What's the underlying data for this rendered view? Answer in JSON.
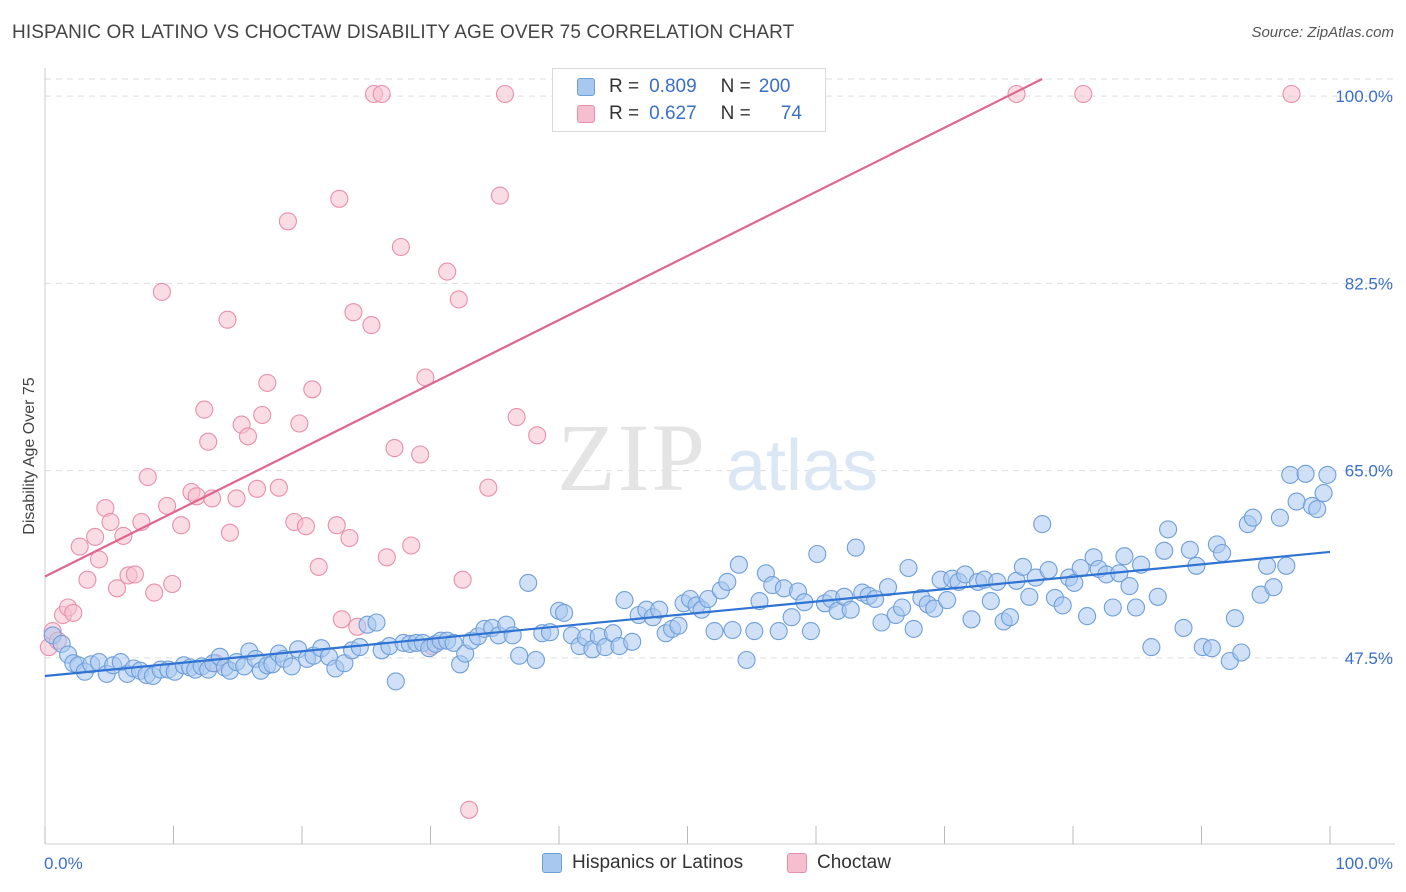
{
  "title": "HISPANIC OR LATINO VS CHOCTAW DISABILITY AGE OVER 75 CORRELATION CHART",
  "source": "Source: ZipAtlas.com",
  "watermark": {
    "zip": "ZIP",
    "atlas": "atlas"
  },
  "legend": {
    "rows": [
      {
        "r_label": "R =",
        "r_value": "0.809",
        "n_label": "N =",
        "n_value": "200"
      },
      {
        "r_label": "R =",
        "r_value": "0.627",
        "n_label": "N =",
        "n_value": "74"
      }
    ]
  },
  "bottom_legend": [
    {
      "label": "Hispanics or Latinos"
    },
    {
      "label": "Choctaw"
    }
  ],
  "colors": {
    "blue_fill": "#a9c8f0",
    "blue_stroke": "#6f9fd8",
    "blue_line": "#2f73d3",
    "pink_fill": "#f6bfd0",
    "pink_stroke": "#e88fac",
    "pink_line": "#e0658f",
    "axis_text": "#3a6fc9",
    "grid": "#dddddd"
  },
  "chart_data": {
    "type": "scatter",
    "title": "HISPANIC OR LATINO VS CHOCTAW DISABILITY AGE OVER 75 CORRELATION CHART",
    "xlabel": "",
    "ylabel": "Disability Age Over 75",
    "xlim": [
      0,
      100
    ],
    "ylim": [
      30.1,
      101.6
    ],
    "x_tick_labels": [
      "0.0%",
      "100.0%"
    ],
    "y_ticks": [
      47.5,
      65.0,
      82.5,
      100.0
    ],
    "y_tick_labels": [
      "47.5%",
      "65.0%",
      "82.5%",
      "100.0%"
    ],
    "grid": true,
    "legend_position": "top-center",
    "series": [
      {
        "name": "Hispanics or Latinos",
        "color": "#a9c8f0",
        "trend": {
          "x": [
            0,
            100
          ],
          "y": [
            45.8,
            57.4
          ]
        },
        "points": [
          [
            0.6,
            49.6
          ],
          [
            1.3,
            48.8
          ],
          [
            1.8,
            47.8
          ],
          [
            2.2,
            47.0
          ],
          [
            2.6,
            46.8
          ],
          [
            3.1,
            46.2
          ],
          [
            3.6,
            46.9
          ],
          [
            4.2,
            47.1
          ],
          [
            4.8,
            46.0
          ],
          [
            5.3,
            46.8
          ],
          [
            5.9,
            47.1
          ],
          [
            6.4,
            46.0
          ],
          [
            6.9,
            46.5
          ],
          [
            7.4,
            46.3
          ],
          [
            7.9,
            45.9
          ],
          [
            8.4,
            45.8
          ],
          [
            9.0,
            46.4
          ],
          [
            9.6,
            46.4
          ],
          [
            10.1,
            46.2
          ],
          [
            10.8,
            46.8
          ],
          [
            11.3,
            46.6
          ],
          [
            11.7,
            46.4
          ],
          [
            12.2,
            46.7
          ],
          [
            12.7,
            46.4
          ],
          [
            13.1,
            47.0
          ],
          [
            13.6,
            47.6
          ],
          [
            14.0,
            46.6
          ],
          [
            14.4,
            46.3
          ],
          [
            14.9,
            47.1
          ],
          [
            15.5,
            46.7
          ],
          [
            15.9,
            48.1
          ],
          [
            16.4,
            47.4
          ],
          [
            16.8,
            46.3
          ],
          [
            17.3,
            46.8
          ],
          [
            17.7,
            46.9
          ],
          [
            18.2,
            47.9
          ],
          [
            18.6,
            47.4
          ],
          [
            19.2,
            46.7
          ],
          [
            19.7,
            48.3
          ],
          [
            20.4,
            47.4
          ],
          [
            20.9,
            47.7
          ],
          [
            21.5,
            48.4
          ],
          [
            22.1,
            47.6
          ],
          [
            22.6,
            46.5
          ],
          [
            23.3,
            47.0
          ],
          [
            23.9,
            48.2
          ],
          [
            24.5,
            48.5
          ],
          [
            25.1,
            50.6
          ],
          [
            25.8,
            50.8
          ],
          [
            26.2,
            48.2
          ],
          [
            26.8,
            48.6
          ],
          [
            27.3,
            45.3
          ],
          [
            27.9,
            48.9
          ],
          [
            28.4,
            48.8
          ],
          [
            28.9,
            48.9
          ],
          [
            29.4,
            48.9
          ],
          [
            29.9,
            48.4
          ],
          [
            30.4,
            48.8
          ],
          [
            30.8,
            49.1
          ],
          [
            31.3,
            49.1
          ],
          [
            31.8,
            48.9
          ],
          [
            32.3,
            46.9
          ],
          [
            32.7,
            47.9
          ],
          [
            33.2,
            49.1
          ],
          [
            33.7,
            49.5
          ],
          [
            34.2,
            50.2
          ],
          [
            34.8,
            50.3
          ],
          [
            35.3,
            49.6
          ],
          [
            35.9,
            50.6
          ],
          [
            36.4,
            49.6
          ],
          [
            36.9,
            47.7
          ],
          [
            37.6,
            54.5
          ],
          [
            38.2,
            47.3
          ],
          [
            38.7,
            49.8
          ],
          [
            39.3,
            49.9
          ],
          [
            40.0,
            51.9
          ],
          [
            40.4,
            51.7
          ],
          [
            41.0,
            49.6
          ],
          [
            41.6,
            48.6
          ],
          [
            42.1,
            49.4
          ],
          [
            42.6,
            48.3
          ],
          [
            43.1,
            49.5
          ],
          [
            43.6,
            48.5
          ],
          [
            44.2,
            49.8
          ],
          [
            44.7,
            48.6
          ],
          [
            45.1,
            52.9
          ],
          [
            45.7,
            49.0
          ],
          [
            46.2,
            51.5
          ],
          [
            46.8,
            52.0
          ],
          [
            47.3,
            51.3
          ],
          [
            47.8,
            52.0
          ],
          [
            48.3,
            49.8
          ],
          [
            48.8,
            50.2
          ],
          [
            49.3,
            50.5
          ],
          [
            49.7,
            52.6
          ],
          [
            50.2,
            53.0
          ],
          [
            50.7,
            52.4
          ],
          [
            51.1,
            52.0
          ],
          [
            51.6,
            53.0
          ],
          [
            52.1,
            50.0
          ],
          [
            52.6,
            53.8
          ],
          [
            53.1,
            54.6
          ],
          [
            53.5,
            50.1
          ],
          [
            54.0,
            56.2
          ],
          [
            54.6,
            47.3
          ],
          [
            55.2,
            50.0
          ],
          [
            55.6,
            52.8
          ],
          [
            56.1,
            55.4
          ],
          [
            56.6,
            54.3
          ],
          [
            57.1,
            50.0
          ],
          [
            57.5,
            54.0
          ],
          [
            58.1,
            51.3
          ],
          [
            58.6,
            53.7
          ],
          [
            59.1,
            52.7
          ],
          [
            59.6,
            50.0
          ],
          [
            60.1,
            57.2
          ],
          [
            60.7,
            52.6
          ],
          [
            61.2,
            53.0
          ],
          [
            61.7,
            51.9
          ],
          [
            62.2,
            53.2
          ],
          [
            62.7,
            52.0
          ],
          [
            63.1,
            57.8
          ],
          [
            63.6,
            53.6
          ],
          [
            64.1,
            53.3
          ],
          [
            64.6,
            53.0
          ],
          [
            65.1,
            50.8
          ],
          [
            65.6,
            54.1
          ],
          [
            66.2,
            51.5
          ],
          [
            66.7,
            52.2
          ],
          [
            67.2,
            55.9
          ],
          [
            67.6,
            50.2
          ],
          [
            68.2,
            53.1
          ],
          [
            68.7,
            52.5
          ],
          [
            69.2,
            52.1
          ],
          [
            69.7,
            54.8
          ],
          [
            70.2,
            52.9
          ],
          [
            70.6,
            54.9
          ],
          [
            71.1,
            54.6
          ],
          [
            71.6,
            55.3
          ],
          [
            72.1,
            51.1
          ],
          [
            72.6,
            54.6
          ],
          [
            73.1,
            54.8
          ],
          [
            73.6,
            52.8
          ],
          [
            74.1,
            54.6
          ],
          [
            74.6,
            50.9
          ],
          [
            75.1,
            51.3
          ],
          [
            75.6,
            54.7
          ],
          [
            76.1,
            56.0
          ],
          [
            76.6,
            53.2
          ],
          [
            77.1,
            55.0
          ],
          [
            77.6,
            60.0
          ],
          [
            78.1,
            55.7
          ],
          [
            78.6,
            53.1
          ],
          [
            79.2,
            52.4
          ],
          [
            79.7,
            55.0
          ],
          [
            80.1,
            54.5
          ],
          [
            80.6,
            55.9
          ],
          [
            81.1,
            51.4
          ],
          [
            81.6,
            56.9
          ],
          [
            82.0,
            55.8
          ],
          [
            82.6,
            55.3
          ],
          [
            83.1,
            52.2
          ],
          [
            83.6,
            55.4
          ],
          [
            84.0,
            57.0
          ],
          [
            84.4,
            54.2
          ],
          [
            84.9,
            52.2
          ],
          [
            85.3,
            56.2
          ],
          [
            86.1,
            48.5
          ],
          [
            86.6,
            53.2
          ],
          [
            87.1,
            57.5
          ],
          [
            87.4,
            59.5
          ],
          [
            88.6,
            50.3
          ],
          [
            89.1,
            57.6
          ],
          [
            89.6,
            56.1
          ],
          [
            90.1,
            48.5
          ],
          [
            90.8,
            48.4
          ],
          [
            91.2,
            58.1
          ],
          [
            91.6,
            57.3
          ],
          [
            92.2,
            47.2
          ],
          [
            92.6,
            51.2
          ],
          [
            93.1,
            48.0
          ],
          [
            93.6,
            60.0
          ],
          [
            94.0,
            60.6
          ],
          [
            94.6,
            53.4
          ],
          [
            95.1,
            56.1
          ],
          [
            95.6,
            54.1
          ],
          [
            96.1,
            60.6
          ],
          [
            96.6,
            56.1
          ],
          [
            96.9,
            64.6
          ],
          [
            97.4,
            62.1
          ],
          [
            98.1,
            64.7
          ],
          [
            98.6,
            61.7
          ],
          [
            99.0,
            61.4
          ],
          [
            99.5,
            62.9
          ],
          [
            99.8,
            64.6
          ]
        ]
      },
      {
        "name": "Choctaw",
        "color": "#f6bfd0",
        "trend": {
          "x": [
            0,
            77.6
          ],
          "y": [
            55.1,
            101.6
          ]
        },
        "points": [
          [
            0.3,
            48.5
          ],
          [
            0.6,
            50.0
          ],
          [
            1.0,
            49.1
          ],
          [
            1.4,
            51.5
          ],
          [
            1.8,
            52.2
          ],
          [
            2.2,
            51.7
          ],
          [
            2.7,
            57.9
          ],
          [
            3.3,
            54.8
          ],
          [
            3.9,
            58.8
          ],
          [
            4.2,
            56.7
          ],
          [
            4.7,
            61.5
          ],
          [
            5.1,
            60.2
          ],
          [
            5.6,
            54.0
          ],
          [
            6.1,
            58.9
          ],
          [
            6.5,
            55.2
          ],
          [
            7.0,
            55.3
          ],
          [
            7.5,
            60.2
          ],
          [
            8.0,
            64.4
          ],
          [
            8.5,
            53.6
          ],
          [
            9.1,
            81.7
          ],
          [
            9.5,
            61.7
          ],
          [
            9.9,
            54.4
          ],
          [
            10.6,
            59.9
          ],
          [
            11.4,
            63.0
          ],
          [
            11.8,
            62.6
          ],
          [
            12.4,
            70.7
          ],
          [
            12.7,
            67.7
          ],
          [
            13.0,
            62.4
          ],
          [
            13.3,
            47.0
          ],
          [
            14.2,
            79.1
          ],
          [
            14.4,
            59.2
          ],
          [
            14.9,
            62.4
          ],
          [
            15.3,
            69.3
          ],
          [
            15.8,
            68.2
          ],
          [
            16.5,
            63.3
          ],
          [
            16.9,
            70.2
          ],
          [
            17.3,
            73.2
          ],
          [
            18.2,
            63.4
          ],
          [
            18.9,
            88.3
          ],
          [
            19.4,
            60.2
          ],
          [
            19.8,
            69.4
          ],
          [
            20.3,
            59.8
          ],
          [
            20.8,
            72.6
          ],
          [
            21.3,
            56.0
          ],
          [
            22.7,
            59.9
          ],
          [
            22.9,
            90.4
          ],
          [
            23.1,
            51.1
          ],
          [
            23.7,
            58.7
          ],
          [
            24.0,
            79.8
          ],
          [
            24.3,
            50.4
          ],
          [
            25.4,
            78.6
          ],
          [
            25.6,
            100.2
          ],
          [
            26.2,
            100.2
          ],
          [
            26.6,
            56.9
          ],
          [
            27.2,
            67.1
          ],
          [
            27.7,
            85.9
          ],
          [
            28.5,
            58.0
          ],
          [
            29.2,
            66.5
          ],
          [
            29.6,
            73.7
          ],
          [
            30.1,
            48.6
          ],
          [
            31.3,
            83.6
          ],
          [
            32.2,
            81.0
          ],
          [
            32.5,
            54.8
          ],
          [
            33.0,
            33.3
          ],
          [
            34.5,
            63.4
          ],
          [
            35.4,
            90.7
          ],
          [
            35.8,
            100.2
          ],
          [
            36.7,
            70.0
          ],
          [
            38.3,
            68.3
          ],
          [
            75.6,
            100.2
          ],
          [
            80.8,
            100.2
          ],
          [
            97.0,
            100.2
          ]
        ]
      }
    ]
  }
}
